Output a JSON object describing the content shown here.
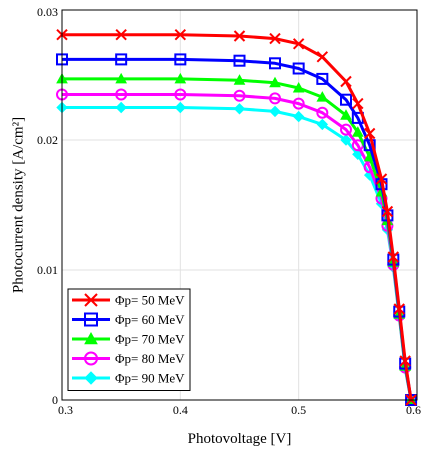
{
  "chart_data": {
    "type": "line",
    "xlabel": "Photovoltage [V]",
    "ylabel": "Photocurrent density [A/cm²]",
    "xlim": [
      0.3,
      0.6
    ],
    "ylim": [
      0,
      0.03
    ],
    "x_ticks": [
      "0.3",
      "0.4",
      "0.5",
      "0.6"
    ],
    "y_ticks": [
      "0",
      "0.01",
      "0.02",
      "0.03"
    ],
    "grid": true,
    "legend_position": "lower-left",
    "series": [
      {
        "name": "Φp= 50 MeV",
        "color": "#ff0000",
        "marker": "x-cross",
        "x": [
          0.3,
          0.35,
          0.4,
          0.45,
          0.48,
          0.5,
          0.52,
          0.54,
          0.55,
          0.56,
          0.57,
          0.575,
          0.58,
          0.585,
          0.59,
          0.595
        ],
        "y": [
          0.0281,
          0.0281,
          0.0281,
          0.028,
          0.0278,
          0.0274,
          0.0264,
          0.0245,
          0.0228,
          0.0205,
          0.017,
          0.0145,
          0.011,
          0.007,
          0.003,
          0.0
        ]
      },
      {
        "name": "Φp= 60 MeV",
        "color": "#0000ff",
        "marker": "square",
        "x": [
          0.3,
          0.35,
          0.4,
          0.45,
          0.48,
          0.5,
          0.52,
          0.54,
          0.55,
          0.56,
          0.57,
          0.575,
          0.58,
          0.585,
          0.59,
          0.595
        ],
        "y": [
          0.0262,
          0.0262,
          0.0262,
          0.0261,
          0.0259,
          0.0255,
          0.0247,
          0.0231,
          0.0217,
          0.0196,
          0.0166,
          0.0142,
          0.0108,
          0.0068,
          0.0028,
          0.0
        ]
      },
      {
        "name": "Φp= 70 MeV",
        "color": "#00ff00",
        "marker": "triangle",
        "x": [
          0.3,
          0.35,
          0.4,
          0.45,
          0.48,
          0.5,
          0.52,
          0.54,
          0.55,
          0.56,
          0.57,
          0.575,
          0.58,
          0.585,
          0.59,
          0.595
        ],
        "y": [
          0.0247,
          0.0247,
          0.0247,
          0.0246,
          0.0244,
          0.024,
          0.0233,
          0.0219,
          0.0206,
          0.0187,
          0.016,
          0.0138,
          0.0106,
          0.0066,
          0.0026,
          0.0
        ]
      },
      {
        "name": "Φp= 80 MeV",
        "color": "#ff00ff",
        "marker": "circle",
        "x": [
          0.3,
          0.35,
          0.4,
          0.45,
          0.48,
          0.5,
          0.52,
          0.54,
          0.55,
          0.56,
          0.57,
          0.575,
          0.58,
          0.585,
          0.59,
          0.595
        ],
        "y": [
          0.0235,
          0.0235,
          0.0235,
          0.0234,
          0.0232,
          0.0228,
          0.0221,
          0.0208,
          0.0196,
          0.0179,
          0.0155,
          0.0134,
          0.0104,
          0.0065,
          0.0025,
          0.0
        ]
      },
      {
        "name": "Φp= 90 MeV",
        "color": "#00ffff",
        "marker": "diamond",
        "x": [
          0.3,
          0.35,
          0.4,
          0.45,
          0.48,
          0.5,
          0.52,
          0.54,
          0.55,
          0.56,
          0.57,
          0.575,
          0.58,
          0.585,
          0.59,
          0.595
        ],
        "y": [
          0.0225,
          0.0225,
          0.0225,
          0.0224,
          0.0222,
          0.0218,
          0.0212,
          0.02,
          0.0189,
          0.0173,
          0.0151,
          0.0131,
          0.0102,
          0.0064,
          0.0024,
          0.0
        ]
      }
    ]
  }
}
